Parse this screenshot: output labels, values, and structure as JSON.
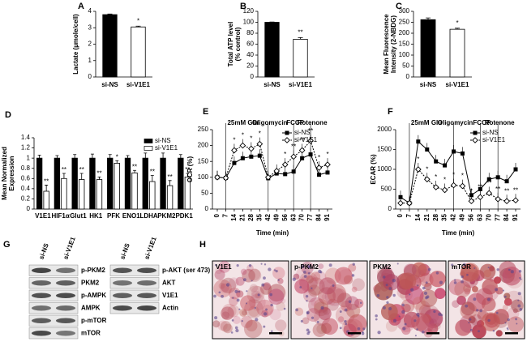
{
  "chart_data": [
    {
      "type": "bar",
      "label": "A",
      "categories": [
        "si-NS",
        "si-V1E1"
      ],
      "values": [
        3.8,
        3.05
      ],
      "errors": [
        0.04,
        0.05
      ],
      "colors": [
        "#000000",
        "#ffffff"
      ],
      "ylabel": [
        "Lactate (µmole/cell)"
      ],
      "ylim": [
        0,
        4
      ],
      "yticks": [
        0,
        1,
        2,
        3,
        4
      ],
      "significance": "*"
    },
    {
      "type": "bar",
      "label": "B",
      "categories": [
        "si-NS",
        "si-V1E1"
      ],
      "values": [
        100,
        69
      ],
      "errors": [
        0.5,
        3
      ],
      "colors": [
        "#000000",
        "#ffffff"
      ],
      "ylabel": [
        "Total ATP level",
        "(% control)"
      ],
      "ylim": [
        0,
        120
      ],
      "yticks": [
        0,
        20,
        40,
        60,
        80,
        100,
        120
      ],
      "significance": "**"
    },
    {
      "type": "bar",
      "label": "C",
      "categories": [
        "si-NS",
        "si-V1E1"
      ],
      "values": [
        262,
        218
      ],
      "errors": [
        8,
        5
      ],
      "colors": [
        "#000000",
        "#ffffff"
      ],
      "ylabel": [
        "Mean Fluorescence",
        "Intensity (2-NBDG)"
      ],
      "ylim": [
        0,
        300
      ],
      "yticks": [
        0,
        50,
        100,
        150,
        200,
        250,
        300
      ],
      "significance": "*"
    },
    {
      "type": "grouped-bar",
      "label": "D",
      "categories": [
        "V1E1",
        "HIF1α",
        "Glut1",
        "HK1",
        "PFK",
        "ENO1",
        "LDHA",
        "PKM2",
        "PDK1"
      ],
      "ylabel": [
        "Mean Normalized",
        "Expression"
      ],
      "ylim": [
        0,
        1.4
      ],
      "yticks": [
        0,
        0.2,
        0.4,
        0.6,
        0.8,
        1,
        1.2,
        1.4
      ],
      "legend": "upper right",
      "series": [
        {
          "name": "si-NS",
          "color": "#000000",
          "values": [
            1.0,
            1.0,
            1.0,
            1.0,
            1.0,
            1.0,
            1.0,
            1.0,
            1.0
          ],
          "errors": [
            0.06,
            0.05,
            0.07,
            0.08,
            0.07,
            0.05,
            0.1,
            0.1,
            0.07
          ]
        },
        {
          "name": "si-V1E1",
          "color": "#ffffff",
          "values": [
            0.35,
            0.6,
            0.58,
            0.58,
            0.9,
            0.71,
            0.54,
            0.46,
            0.63
          ],
          "errors": [
            0.12,
            0.1,
            0.12,
            0.05,
            0.05,
            0.05,
            0.12,
            0.1,
            0.07
          ],
          "significance": [
            "**",
            "**",
            "**",
            "**",
            "*",
            "**",
            "**",
            "**",
            "**"
          ]
        }
      ]
    },
    {
      "type": "line",
      "label": "E",
      "x": [
        0,
        7,
        14,
        21,
        28,
        35,
        42,
        49,
        56,
        63,
        70,
        77,
        84,
        91
      ],
      "xlim": [
        0,
        91
      ],
      "xticks": [
        0,
        7,
        14,
        21,
        28,
        35,
        42,
        49,
        56,
        63,
        70,
        77,
        84,
        91
      ],
      "xlabel": "Time (min)",
      "ylabel": [
        "OCR (%)"
      ],
      "ylim": [
        0,
        250
      ],
      "yticks": [
        0,
        50,
        100,
        150,
        200,
        250
      ],
      "legend": "upper right",
      "events": [
        {
          "x": 7,
          "label": "25mM Glu"
        },
        {
          "x": 42,
          "label": "Oligomycin"
        },
        {
          "x": 63,
          "label": "FCCP"
        },
        {
          "x": 77,
          "label": "Rotenone"
        }
      ],
      "series": [
        {
          "name": "si-NS",
          "color": "#000000",
          "marker": "square",
          "dashed": false,
          "values": [
            100,
            98,
            145,
            160,
            165,
            168,
            97,
            112,
            110,
            118,
            160,
            172,
            108,
            115
          ]
        },
        {
          "name": "si-V1E1",
          "color": "#000000",
          "marker": "diamond",
          "dashed": true,
          "values": [
            100,
            98,
            185,
            200,
            190,
            205,
            100,
            120,
            140,
            165,
            185,
            215,
            130,
            140
          ],
          "significance": [
            null,
            null,
            "*",
            "*",
            "*",
            "*",
            null,
            null,
            "*",
            "**",
            "**",
            "**",
            "*",
            "*"
          ]
        }
      ]
    },
    {
      "type": "line",
      "label": "F",
      "x": [
        0,
        7,
        14,
        21,
        28,
        35,
        42,
        49,
        56,
        63,
        70,
        77,
        84,
        91
      ],
      "xlim": [
        0,
        91
      ],
      "xticks": [
        0,
        7,
        14,
        21,
        28,
        35,
        42,
        49,
        56,
        63,
        70,
        77,
        84,
        91
      ],
      "xlabel": "Time (min)",
      "ylabel": [
        "ECAR (%)"
      ],
      "ylim": [
        0,
        2000
      ],
      "yticks": [
        0,
        500,
        1000,
        1500,
        2000
      ],
      "legend": "upper right",
      "events": [
        {
          "x": 7,
          "label": "25mM Glu"
        },
        {
          "x": 42,
          "label": "Oligomycin"
        },
        {
          "x": 63,
          "label": "FCCP"
        },
        {
          "x": 77,
          "label": "Rotenone"
        }
      ],
      "series": [
        {
          "name": "si-NS",
          "color": "#000000",
          "marker": "square",
          "dashed": false,
          "values": [
            300,
            150,
            1700,
            1500,
            1200,
            1100,
            1450,
            1400,
            350,
            500,
            750,
            800,
            700,
            1000
          ]
        },
        {
          "name": "si-V1E1",
          "color": "#000000",
          "marker": "diamond",
          "dashed": true,
          "values": [
            150,
            150,
            1000,
            750,
            550,
            480,
            600,
            580,
            200,
            300,
            400,
            250,
            200,
            220
          ],
          "significance": [
            null,
            null,
            "*",
            "*",
            "*",
            "*",
            "*",
            "*",
            "*",
            "**",
            "**",
            "**",
            "**",
            "**"
          ]
        }
      ]
    }
  ],
  "blots": {
    "label": "G",
    "panels": [
      {
        "lanes": [
          "si-NS",
          "si-V1E1"
        ],
        "proteins": [
          "p-PKM2",
          "PKM2",
          "p-AMPK",
          "AMPK",
          "p-mTOR",
          "mTOR"
        ]
      },
      {
        "lanes": [
          "si-NS",
          "si-V1E1"
        ],
        "proteins": [
          "p-AKT (ser 473)",
          "AKT",
          "V1E1",
          "Actin"
        ]
      }
    ]
  },
  "micrographs": {
    "label": "H",
    "panels": [
      "V1E1",
      "p-PKM2",
      "PKM2",
      "mTOR"
    ]
  }
}
